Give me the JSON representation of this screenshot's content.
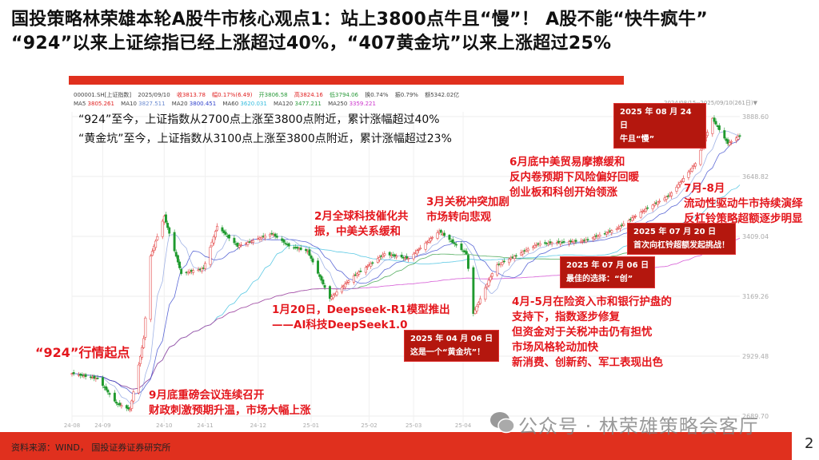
{
  "title": {
    "line1": "国投策略林荣雄本轮A股牛市核心观点1：站上3800点牛且“慢”！ A股不能“快牛疯牛”",
    "line2": "“924”以来上证综指已经上涨超过40%，“407黄金坑”以来上涨超过25%"
  },
  "quote": {
    "code": "000001.SH[上证指数]",
    "date": "2025/09/10",
    "close": "收3813.78",
    "change": "幅0.17%(6.49)",
    "open": "开3806.58",
    "high": "高3824.16",
    "low": "低3794.06",
    "turnover": "换0.74%",
    "amplitude": "振0.79%",
    "amount": "额5342.02亿",
    "ma": [
      {
        "label": "MA5",
        "value": "3805.261",
        "color": "#e02020"
      },
      {
        "label": "MA10",
        "value": "3827.511",
        "color": "#6a8ad0"
      },
      {
        "label": "MA20",
        "value": "3800.451",
        "color": "#3344cc"
      },
      {
        "label": "MA60",
        "value": "3620.031",
        "color": "#33bbdd"
      },
      {
        "label": "MA120",
        "value": "3477.211",
        "color": "#2a9a3a"
      },
      {
        "label": "MA250",
        "value": "3359.221",
        "color": "#cc33cc"
      }
    ]
  },
  "range_label": "2024/08/15--2025/09/10(261日)▼",
  "summary": [
    "“924”至今，上证指数从2700点上涨至3800点附近，累计涨幅超过40%",
    "“黄金坑”至今，上证指数从3100点上涨至3800点附近，累计涨幅超过23%"
  ],
  "annotations": {
    "a924": "“924”行情起点",
    "sep": [
      "9月底重磅会议连续召开",
      "财政刺激预期升温，市场大幅上涨"
    ],
    "deepseek": [
      "1月20日，Deepseek-R1模型推出",
      "——AI科技DeepSeek1.0"
    ],
    "feb": [
      "2月全球科技催化共",
      "振，中美关系缓和"
    ],
    "mar": [
      "3月关税冲突加剧",
      "市场转向悲观"
    ],
    "aprmay": [
      "4月-5月在险资入市和银行护盘的",
      "支持下，指数逐步修复",
      "但资金对于关税冲击仍有担忧",
      "市场风格轮动加快",
      "新消费、创新药、军工表现出色"
    ],
    "jun": [
      "6月底中美贸易摩擦缓和",
      "反内卷预期下风险偏好回暖",
      "创业板和科创开始领涨"
    ],
    "julaug": [
      "7月-8月",
      "流动性驱动牛市持续演绎",
      "反杠铃策略超额逐步明显"
    ]
  },
  "boxes": {
    "b0406": [
      "2025 年 04 月 06 日",
      "这是一个“黄金坑”！"
    ],
    "b0706": [
      "2025 年 07 月 06 日",
      "最佳的选择：“创”"
    ],
    "b0720": [
      "2025 年 07 月 20 日",
      "首次向杠铃超额发起挑战！"
    ],
    "b0824": [
      "2025 年 08 月 24 日",
      "牛且“慢”"
    ]
  },
  "source": "资料来源：WIND， 国投证券证券研究所",
  "page": "2",
  "watermark": "公众号 · 林荣雄策略会客厅",
  "colors": {
    "accent": "#e0301e",
    "up": "#e03030",
    "down": "#1f9a2e",
    "box": "#b4170e"
  },
  "chart_data": {
    "type": "candlestick",
    "title": "",
    "ylim": [
      2689.7,
      3888.6
    ],
    "yticks": [
      "3888.60",
      "3648.82",
      "3409.04",
      "3169.26",
      "2929.48",
      "2689.70"
    ],
    "xticks": [
      "24-08",
      "24-09",
      "24-10",
      "24-11",
      "24-12",
      "25-01",
      "25-02",
      "25-03",
      "25-04"
    ],
    "grid": true,
    "closes": [
      [
        "2024-08-15",
        2860
      ],
      [
        "2024-08-30",
        2840
      ],
      [
        "2024-09-10",
        2740
      ],
      [
        "2024-09-18",
        2715
      ],
      [
        "2024-09-26",
        3000
      ],
      [
        "2024-09-30",
        3330
      ],
      [
        "2024-10-08",
        3490
      ],
      [
        "2024-10-18",
        3260
      ],
      [
        "2024-10-31",
        3280
      ],
      [
        "2024-11-08",
        3450
      ],
      [
        "2024-11-20",
        3370
      ],
      [
        "2024-12-10",
        3420
      ],
      [
        "2024-12-20",
        3370
      ],
      [
        "2024-12-31",
        3350
      ],
      [
        "2025-01-13",
        3160
      ],
      [
        "2025-01-27",
        3250
      ],
      [
        "2025-02-14",
        3340
      ],
      [
        "2025-02-28",
        3320
      ],
      [
        "2025-03-18",
        3430
      ],
      [
        "2025-04-03",
        3340
      ],
      [
        "2025-04-07",
        3100
      ],
      [
        "2025-04-20",
        3290
      ],
      [
        "2025-05-15",
        3380
      ],
      [
        "2025-06-10",
        3390
      ],
      [
        "2025-06-30",
        3440
      ],
      [
        "2025-07-15",
        3510
      ],
      [
        "2025-07-31",
        3575
      ],
      [
        "2025-08-15",
        3700
      ],
      [
        "2025-08-25",
        3880
      ],
      [
        "2025-09-03",
        3780
      ],
      [
        "2025-09-10",
        3813
      ]
    ]
  }
}
